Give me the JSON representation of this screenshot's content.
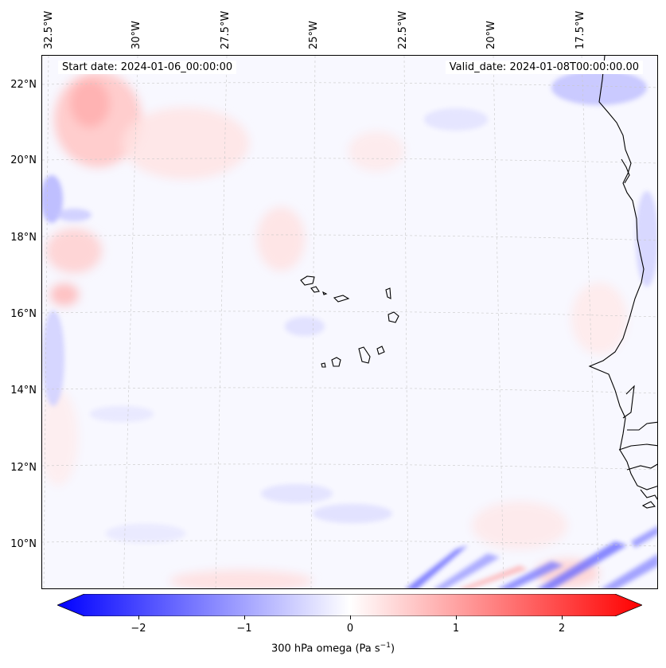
{
  "map": {
    "start_date": "Start date: 2024-01-06_00:00:00",
    "valid_date": "Valid_date: 2024-01-08T00:00:00.00",
    "lon_labels": [
      "32.5°W",
      "30°W",
      "27.5°W",
      "25°W",
      "22.5°W",
      "20°W",
      "17.5°W"
    ],
    "lat_labels": [
      "22°N",
      "20°N",
      "18°N",
      "16°N",
      "14°N",
      "12°N",
      "10°N"
    ],
    "field": "300 hPa omega",
    "colormap": "bwr",
    "grid": true
  },
  "colorbar": {
    "ticks": [
      "−2",
      "−1",
      "0",
      "1",
      "2"
    ],
    "label": "300 hPa omega (Pa s",
    "label_sup": "−1",
    "label_end": ")",
    "range": [
      -2.6,
      2.6
    ],
    "min_color": "#0000ff",
    "mid_color": "#ffffff",
    "max_color": "#ff0000"
  }
}
